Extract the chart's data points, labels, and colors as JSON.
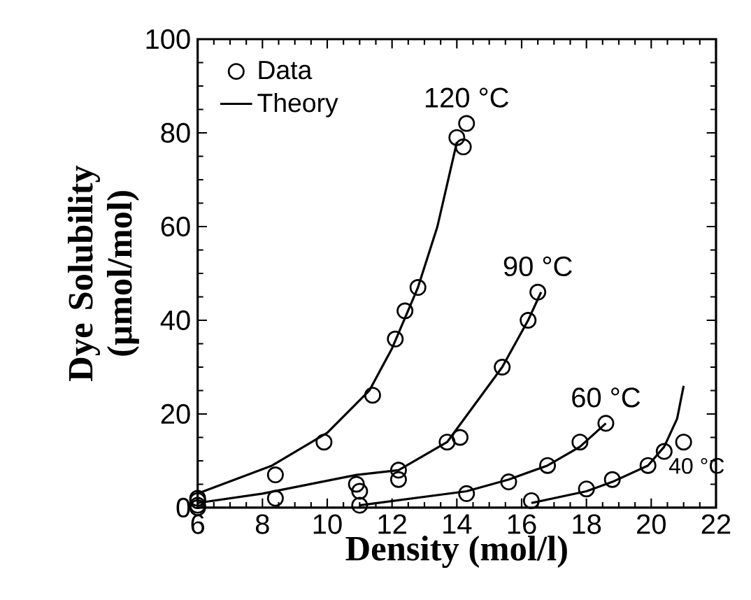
{
  "chart_data": {
    "type": "scatter",
    "xlabel": "Density (mol/l)",
    "ylabel": "Dye Solubility (μmol/mol)",
    "xlim": [
      6,
      22
    ],
    "ylim": [
      0,
      100
    ],
    "xticks": [
      6,
      8,
      10,
      12,
      14,
      16,
      18,
      20,
      22
    ],
    "yticks": [
      0,
      20,
      40,
      60,
      80,
      100
    ],
    "legend": "top left",
    "grid": false,
    "series": [
      {
        "name": "Data",
        "marker": "circle",
        "color": "#000000",
        "x": [
          6,
          8.4,
          9.9,
          11.4,
          12.1,
          12.4,
          12.8,
          14.0,
          14.2,
          14.3
        ],
        "values": [
          2,
          7,
          14,
          24,
          36,
          42,
          47,
          79,
          77,
          82
        ]
      },
      {
        "marker": "circle",
        "color": "#000000",
        "x": [
          6,
          8.4,
          10.9,
          11.0,
          12.2,
          12.2,
          13.7,
          14.1,
          15.4,
          16.2,
          16.5
        ],
        "values": [
          1.5,
          2,
          5,
          3.5,
          8,
          6,
          14,
          15,
          30,
          40,
          46
        ]
      },
      {
        "marker": "circle",
        "color": "#000000",
        "x": [
          6,
          11,
          14.3,
          15.6,
          16.8,
          17.8,
          18.6
        ],
        "values": [
          0.5,
          0.5,
          3,
          5.5,
          9,
          14,
          18
        ]
      },
      {
        "marker": "circle",
        "color": "#000000",
        "x": [
          6,
          16.3,
          18.0,
          18.8,
          19.9,
          20.4,
          21.0
        ],
        "values": [
          0,
          1.5,
          4,
          6,
          9,
          12,
          14
        ]
      },
      {
        "name": "Theory",
        "type": "line",
        "color": "#000000",
        "x": [
          6,
          8.3,
          10,
          11.3,
          12,
          12.8,
          13.4,
          14.0
        ],
        "values": [
          3,
          9,
          16,
          25,
          34,
          47,
          60,
          78
        ]
      },
      {
        "type": "line",
        "color": "#000000",
        "x": [
          6,
          8,
          10.9,
          12.2,
          13.7,
          15.4,
          16.2,
          16.6
        ],
        "values": [
          1,
          3,
          7,
          8,
          14,
          30,
          40,
          46
        ]
      },
      {
        "type": "line",
        "color": "#000000",
        "x": [
          11,
          14.3,
          15.6,
          16.8,
          17.8,
          18.6
        ],
        "values": [
          0.5,
          3.5,
          6,
          9,
          13,
          18
        ]
      },
      {
        "type": "line",
        "color": "#000000",
        "x": [
          16.3,
          18,
          18.8,
          19.9,
          20.4,
          20.8,
          21.0
        ],
        "values": [
          1,
          3.5,
          5.5,
          9,
          13,
          19,
          26
        ]
      }
    ],
    "annotations": [
      {
        "text": "120 °C",
        "x": 14.3,
        "y": 82
      },
      {
        "text": "90 °C",
        "x": 16.5,
        "y": 46
      },
      {
        "text": "60 °C",
        "x": 18.6,
        "y": 18
      },
      {
        "text": "40 °C",
        "x": 21.0,
        "y": 14
      }
    ]
  }
}
